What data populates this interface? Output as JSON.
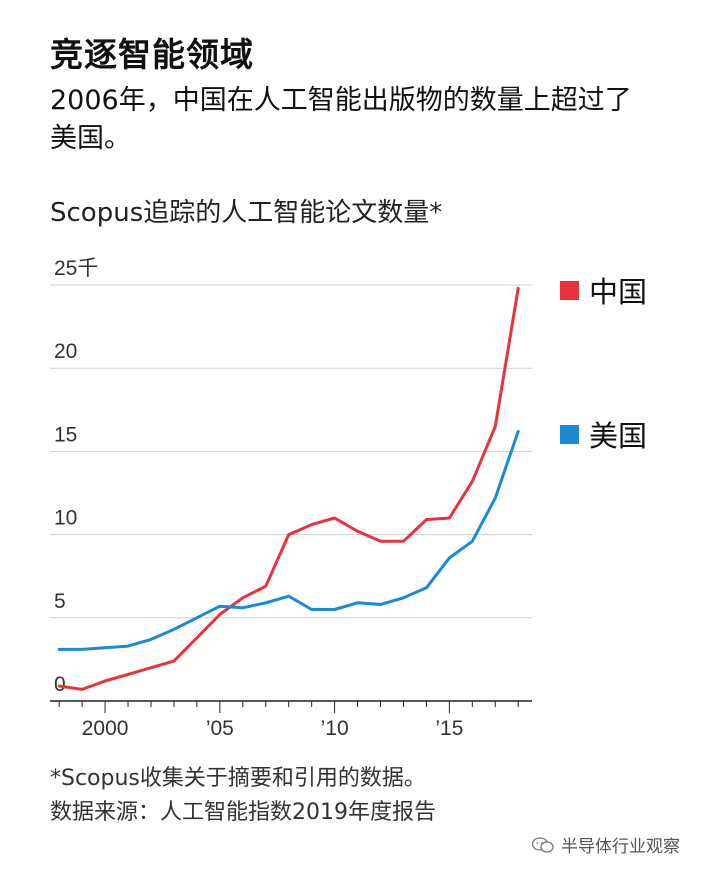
{
  "title": "竞逐智能领域",
  "subtitle": "2006年，中国在人工智能出版物的数量上超过了美国。",
  "chart_data": {
    "type": "line",
    "title": "Scopus追踪的人工智能论文数量*",
    "y_unit": "千",
    "ylim": [
      0,
      25
    ],
    "y_ticks": [
      {
        "value": 0,
        "label": "0"
      },
      {
        "value": 5,
        "label": "5"
      },
      {
        "value": 10,
        "label": "10"
      },
      {
        "value": 15,
        "label": "15"
      },
      {
        "value": 20,
        "label": "20"
      },
      {
        "value": 25,
        "label": "25千"
      }
    ],
    "x_ticks": [
      {
        "value": 2000,
        "label": "2000"
      },
      {
        "value": 2005,
        "label": "’05"
      },
      {
        "value": 2010,
        "label": "’10"
      },
      {
        "value": 2015,
        "label": "’15"
      }
    ],
    "xlim": [
      1997.6,
      2018.6
    ],
    "x": [
      1998,
      1999,
      2000,
      2001,
      2002,
      2003,
      2004,
      2005,
      2006,
      2007,
      2008,
      2009,
      2010,
      2011,
      2012,
      2013,
      2014,
      2015,
      2016,
      2017,
      2018
    ],
    "series": [
      {
        "name": "中国",
        "color": "#e8323c",
        "values": [
          0.9,
          0.7,
          1.2,
          1.6,
          2.0,
          2.4,
          3.8,
          5.2,
          6.2,
          6.9,
          10.0,
          10.6,
          11.0,
          10.2,
          9.6,
          9.6,
          10.9,
          11.0,
          13.2,
          16.5,
          24.8
        ]
      },
      {
        "name": "美国",
        "color": "#1a8ad4",
        "values": [
          3.1,
          3.1,
          3.2,
          3.3,
          3.7,
          4.3,
          5.0,
          5.7,
          5.6,
          5.9,
          6.3,
          5.5,
          5.5,
          5.9,
          5.8,
          6.2,
          6.8,
          8.6,
          9.6,
          12.2,
          16.2
        ]
      }
    ]
  },
  "legend": [
    {
      "label": "中国",
      "color": "#e8323c"
    },
    {
      "label": "美国",
      "color": "#1a8ad4"
    }
  ],
  "footnote": {
    "line1": "*Scopus收集关于摘要和引用的数据。",
    "line2": "数据来源：人工智能指数2019年度报告"
  },
  "watermark": "半导体行业观察"
}
